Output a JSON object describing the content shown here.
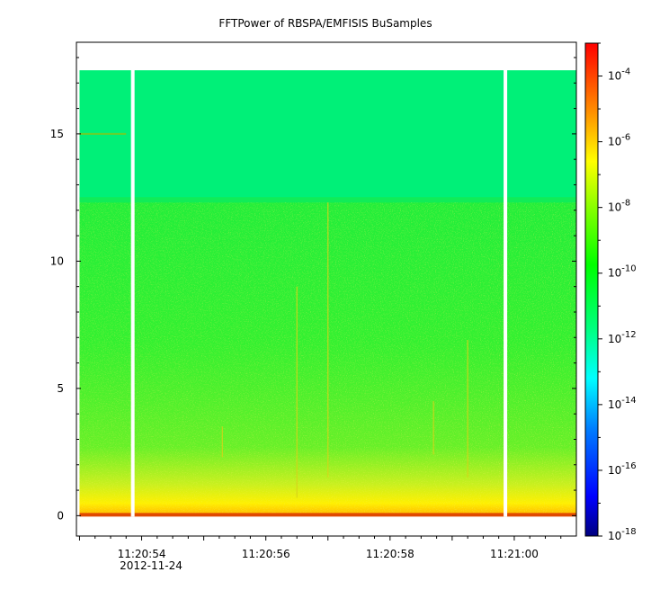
{
  "chart_data": {
    "type": "heatmap",
    "title": "FFTPower of RBSPA/EMFISIS  BuSamples",
    "xlabel": "",
    "ylabel": "",
    "date_label": "2012-11-24",
    "x_ticks": [
      {
        "label": "11:20:54",
        "t": 1.0
      },
      {
        "label": "11:20:56",
        "t": 3.0
      },
      {
        "label": "11:20:58",
        "t": 5.0
      },
      {
        "label": "11:21:00",
        "t": 7.0
      }
    ],
    "xlim_seconds_after_11_20_53": [
      -0.05,
      8.0
    ],
    "y_ticks": [
      0,
      5,
      10,
      15
    ],
    "ylim": [
      -0.8,
      18.6
    ],
    "data_top": 17.5,
    "cyan_band_bottom": 12.3,
    "gaps_at_seconds": [
      0.85,
      6.85
    ],
    "colorbar": {
      "scale": "log",
      "range": [
        1e-18,
        0.001
      ],
      "tick_labels": [
        {
          "base": "10",
          "exp": "-4",
          "value": -4
        },
        {
          "base": "10",
          "exp": "-6",
          "value": -6
        },
        {
          "base": "10",
          "exp": "-8",
          "value": -8
        },
        {
          "base": "10",
          "exp": "-10",
          "value": -10
        },
        {
          "base": "10",
          "exp": "-12",
          "value": -12
        },
        {
          "base": "10",
          "exp": "-14",
          "value": -14
        },
        {
          "base": "10",
          "exp": "-16",
          "value": -16
        },
        {
          "base": "10",
          "exp": "-18",
          "value": -18
        }
      ]
    }
  }
}
